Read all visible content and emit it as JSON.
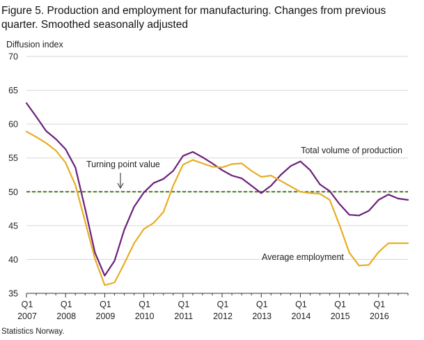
{
  "title_lines": [
    "Figure 5. Production and employment for manufacturing. Changes from previous",
    "quarter. Smoothed seasonally adjusted"
  ],
  "source": "Statistics Norway.",
  "chart_data": {
    "type": "line",
    "ylabel": "Diffusion  index",
    "ylim": [
      35,
      70
    ],
    "y_ticks": [
      35,
      40,
      45,
      50,
      55,
      60,
      65,
      70
    ],
    "xlim": [
      2007.0,
      2016.75
    ],
    "x_ticks": [
      {
        "value": 2007.0,
        "q": "Q1",
        "year": "2007"
      },
      {
        "value": 2008.0,
        "q": "Q1",
        "year": "2008"
      },
      {
        "value": 2009.0,
        "q": "Q1",
        "year": "2009"
      },
      {
        "value": 2010.0,
        "q": "Q1",
        "year": "2010"
      },
      {
        "value": 2011.0,
        "q": "Q1",
        "year": "2011"
      },
      {
        "value": 2012.0,
        "q": "Q1",
        "year": "2012"
      },
      {
        "value": 2013.0,
        "q": "Q1",
        "year": "2013"
      },
      {
        "value": 2014.0,
        "q": "Q1",
        "year": "2014"
      },
      {
        "value": 2015.0,
        "q": "Q1",
        "year": "2015"
      },
      {
        "value": 2016.0,
        "q": "Q1",
        "year": "2016"
      }
    ],
    "grid": "horizontal",
    "reference_line": {
      "y": 50,
      "label": "Turning  point value",
      "color": "#4a7a1f"
    },
    "series": [
      {
        "name": "Total volume of production",
        "color": "#6b1f7b",
        "x": [
          2007.0,
          2007.25,
          2007.5,
          2007.75,
          2008.0,
          2008.25,
          2008.5,
          2008.75,
          2009.0,
          2009.25,
          2009.5,
          2009.75,
          2010.0,
          2010.25,
          2010.5,
          2010.75,
          2011.0,
          2011.25,
          2011.5,
          2011.75,
          2012.0,
          2012.25,
          2012.5,
          2012.75,
          2013.0,
          2013.25,
          2013.5,
          2013.75,
          2014.0,
          2014.25,
          2014.5,
          2014.75,
          2015.0,
          2015.25,
          2015.5,
          2015.75,
          2016.0,
          2016.25,
          2016.5,
          2016.75
        ],
        "values": [
          63.1,
          61.1,
          59.0,
          57.8,
          56.3,
          53.6,
          47.5,
          41.0,
          37.6,
          39.8,
          44.4,
          47.8,
          49.9,
          51.3,
          51.9,
          53.1,
          55.3,
          55.9,
          55.1,
          54.2,
          53.2,
          52.4,
          52.0,
          50.9,
          49.8,
          50.9,
          52.5,
          53.8,
          54.5,
          53.2,
          51.1,
          50.1,
          48.2,
          46.6,
          46.5,
          47.2,
          48.8,
          49.6,
          49.0,
          48.8
        ]
      },
      {
        "name": "Average  employment",
        "color": "#e8ad24",
        "x": [
          2007.0,
          2007.25,
          2007.5,
          2007.75,
          2008.0,
          2008.25,
          2008.5,
          2008.75,
          2009.0,
          2009.25,
          2009.5,
          2009.75,
          2010.0,
          2010.25,
          2010.5,
          2010.75,
          2011.0,
          2011.25,
          2011.5,
          2011.75,
          2012.0,
          2012.25,
          2012.5,
          2012.75,
          2013.0,
          2013.25,
          2013.5,
          2013.75,
          2014.0,
          2014.25,
          2014.5,
          2014.75,
          2015.0,
          2015.25,
          2015.5,
          2015.75,
          2016.0,
          2016.25,
          2016.5,
          2016.75
        ],
        "values": [
          58.9,
          58.1,
          57.2,
          56.1,
          54.3,
          51.0,
          45.6,
          40.1,
          36.2,
          36.6,
          39.4,
          42.4,
          44.5,
          45.4,
          47.0,
          50.9,
          54.0,
          54.7,
          54.2,
          53.7,
          53.6,
          54.1,
          54.2,
          53.1,
          52.2,
          52.4,
          51.6,
          50.8,
          50.0,
          49.8,
          49.7,
          48.8,
          45.1,
          41.0,
          39.1,
          39.2,
          41.1,
          42.4,
          42.4,
          42.4
        ]
      }
    ]
  }
}
